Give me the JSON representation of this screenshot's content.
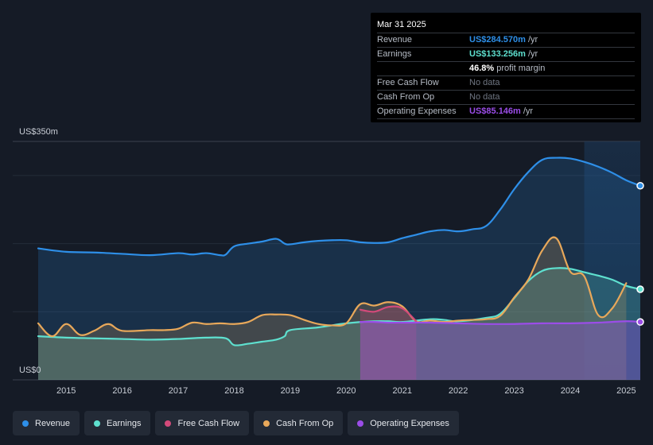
{
  "tooltip": {
    "date": "Mar 31 2025",
    "rows": [
      {
        "label": "Revenue",
        "value": "US$284.570m",
        "unit": "/yr",
        "color": "#2e8fe8"
      },
      {
        "label": "Earnings",
        "value": "US$133.256m",
        "unit": "/yr",
        "color": "#5ee0cf"
      },
      {
        "label": "",
        "value": "46.8%",
        "unit": "profit margin",
        "color": "#ffffff"
      },
      {
        "label": "Free Cash Flow",
        "value": "No data",
        "unit": "",
        "color": "#6f7682"
      },
      {
        "label": "Cash From Op",
        "value": "No data",
        "unit": "",
        "color": "#6f7682"
      },
      {
        "label": "Operating Expenses",
        "value": "US$85.146m",
        "unit": "/yr",
        "color": "#9b4de8"
      }
    ]
  },
  "legend": [
    {
      "label": "Revenue",
      "color": "#2e8fe8"
    },
    {
      "label": "Earnings",
      "color": "#5ee0cf"
    },
    {
      "label": "Free Cash Flow",
      "color": "#d34a7a"
    },
    {
      "label": "Cash From Op",
      "color": "#e8a85a"
    },
    {
      "label": "Operating Expenses",
      "color": "#9b4de8"
    }
  ],
  "chart_data": {
    "type": "area",
    "y_top_label": "US$350m",
    "y_bottom_label": "US$0",
    "ylim": [
      0,
      350
    ],
    "xlim": [
      2014.5,
      2025.25
    ],
    "x_ticks": [
      "2015",
      "2016",
      "2017",
      "2018",
      "2019",
      "2020",
      "2021",
      "2022",
      "2023",
      "2024",
      "2025"
    ],
    "x_tick_values": [
      2015,
      2016,
      2017,
      2018,
      2019,
      2020,
      2021,
      2022,
      2023,
      2024,
      2025
    ],
    "series": [
      {
        "name": "Revenue",
        "color": "#2e8fe8",
        "x": [
          2014.5,
          2015.0,
          2015.5,
          2016.0,
          2016.5,
          2017.0,
          2017.25,
          2017.5,
          2017.75,
          2017.85,
          2018.0,
          2018.25,
          2018.5,
          2018.75,
          2018.9,
          2019.0,
          2019.25,
          2019.5,
          2019.75,
          2020.0,
          2020.25,
          2020.5,
          2020.75,
          2021.0,
          2021.25,
          2021.5,
          2021.75,
          2022.0,
          2022.25,
          2022.5,
          2022.75,
          2023.0,
          2023.25,
          2023.5,
          2023.75,
          2024.0,
          2024.25,
          2024.5,
          2024.75,
          2025.0,
          2025.25
        ],
        "y": [
          193,
          188,
          187,
          185,
          183,
          186,
          184,
          186,
          183,
          184,
          196,
          200,
          203,
          207,
          200,
          199,
          202,
          204,
          205,
          205,
          202,
          201,
          202,
          208,
          213,
          218,
          220,
          218,
          221,
          226,
          250,
          280,
          305,
          323,
          326,
          325,
          320,
          313,
          304,
          293,
          285
        ]
      },
      {
        "name": "Earnings",
        "color": "#5ee0cf",
        "x": [
          2014.5,
          2015.0,
          2015.5,
          2016.0,
          2016.5,
          2017.0,
          2017.5,
          2017.85,
          2018.0,
          2018.25,
          2018.5,
          2018.75,
          2018.9,
          2019.0,
          2019.5,
          2020.0,
          2020.5,
          2020.75,
          2021.0,
          2021.5,
          2021.75,
          2022.0,
          2022.5,
          2022.75,
          2023.0,
          2023.25,
          2023.5,
          2023.75,
          2024.0,
          2024.25,
          2024.5,
          2024.75,
          2025.0,
          2025.25
        ],
        "y": [
          64,
          62,
          61,
          60,
          59,
          60,
          62,
          61,
          51,
          53,
          56,
          59,
          64,
          73,
          77,
          83,
          86,
          86,
          85,
          89,
          88,
          86,
          91,
          97,
          120,
          145,
          160,
          164,
          163,
          158,
          153,
          147,
          138,
          133
        ]
      },
      {
        "name": "Free Cash Flow",
        "color": "#d34a7a",
        "x": [
          2020.25,
          2020.5,
          2020.75,
          2021.0,
          2021.25
        ],
        "y": [
          103,
          100,
          107,
          105,
          86
        ]
      },
      {
        "name": "Cash From Op",
        "color": "#e8a85a",
        "x": [
          2014.5,
          2014.75,
          2015.0,
          2015.25,
          2015.5,
          2015.75,
          2016.0,
          2016.5,
          2016.75,
          2017.0,
          2017.25,
          2017.5,
          2017.75,
          2018.0,
          2018.25,
          2018.5,
          2018.75,
          2019.0,
          2019.25,
          2019.5,
          2019.75,
          2020.0,
          2020.25,
          2020.5,
          2020.75,
          2021.0,
          2021.25,
          2021.5,
          2021.75,
          2022.0,
          2022.25,
          2022.5,
          2022.75,
          2023.0,
          2023.25,
          2023.5,
          2023.75,
          2024.0,
          2024.25,
          2024.5,
          2024.75,
          2025.0
        ],
        "y": [
          83,
          64,
          82,
          66,
          72,
          82,
          72,
          73,
          73,
          75,
          84,
          82,
          83,
          82,
          85,
          95,
          96,
          95,
          88,
          82,
          80,
          83,
          111,
          109,
          114,
          108,
          86,
          87,
          85,
          87,
          88,
          89,
          94,
          121,
          147,
          190,
          208,
          159,
          152,
          95,
          105,
          142
        ]
      },
      {
        "name": "Operating Expenses",
        "color": "#9b4de8",
        "x": [
          2020.25,
          2020.5,
          2020.75,
          2021.0,
          2021.5,
          2022.0,
          2022.5,
          2023.0,
          2023.5,
          2024.0,
          2024.5,
          2025.0,
          2025.25
        ],
        "y": [
          85,
          85,
          84,
          84,
          84,
          83,
          82,
          82,
          83,
          83,
          84,
          86,
          85
        ]
      }
    ]
  }
}
